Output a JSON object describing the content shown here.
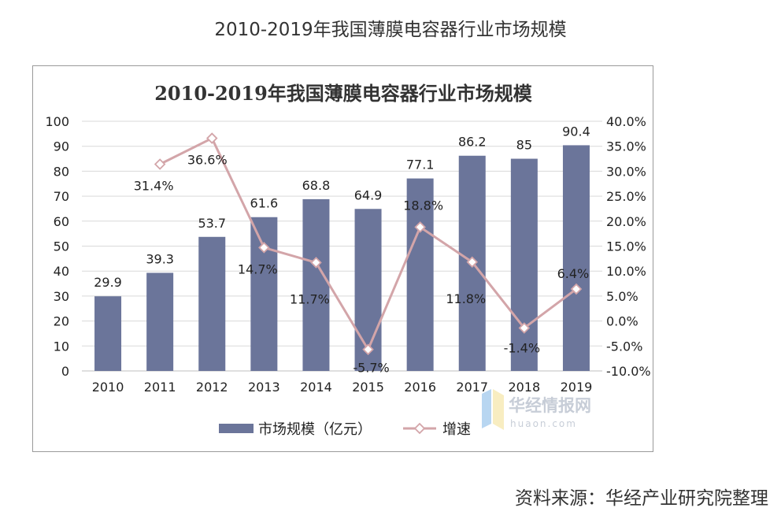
{
  "page_title": "2010-2019年我国薄膜电容器行业市场规模",
  "source_note": "资料来源：华经产业研究院整理",
  "watermark": {
    "name": "华经情报网",
    "url": "huaon.com"
  },
  "colors": {
    "bar": "#6b759a",
    "line": "#d3a5a9",
    "marker_fill": "#ffffff",
    "grid": "#d9d9d9"
  },
  "chart_data": {
    "type": "bar",
    "title": "2010-2019年我国薄膜电容器行业市场规模",
    "categories": [
      "2010",
      "2011",
      "2012",
      "2013",
      "2014",
      "2015",
      "2016",
      "2017",
      "2018",
      "2019"
    ],
    "series": [
      {
        "name": "市场规模（亿元）",
        "type": "bar",
        "axis": "left",
        "values": [
          29.9,
          39.3,
          53.7,
          61.6,
          68.8,
          64.9,
          77.1,
          86.2,
          85,
          90.4
        ],
        "labels": [
          "29.9",
          "39.3",
          "53.7",
          "61.6",
          "68.8",
          "64.9",
          "77.1",
          "86.2",
          "85",
          "90.4"
        ]
      },
      {
        "name": "增速",
        "type": "line",
        "axis": "right",
        "values": [
          null,
          31.4,
          36.6,
          14.7,
          11.7,
          -5.7,
          18.8,
          11.8,
          -1.4,
          6.4
        ],
        "labels": [
          "",
          "31.4%",
          "36.6%",
          "14.7%",
          "11.7%",
          "-5.7%",
          "18.8%",
          "11.8%",
          "-1.4%",
          "6.4%"
        ]
      }
    ],
    "ylim_left": [
      0,
      100
    ],
    "ylim_right": [
      -10,
      40
    ],
    "yticks_left": [
      "0",
      "10",
      "20",
      "30",
      "40",
      "50",
      "60",
      "70",
      "80",
      "90",
      "100"
    ],
    "yticks_right": [
      "-10.0%",
      "-5.0%",
      "0.0%",
      "5.0%",
      "10.0%",
      "15.0%",
      "20.0%",
      "25.0%",
      "30.0%",
      "35.0%",
      "40.0%"
    ],
    "grid": true,
    "legend_position": "bottom"
  }
}
